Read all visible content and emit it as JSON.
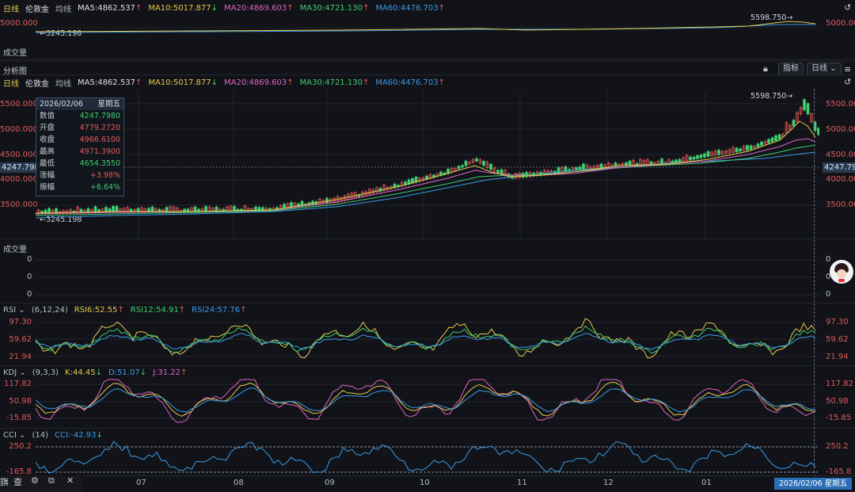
{
  "mini_bar": {
    "period": "日线",
    "name": "伦敦金",
    "avg": "均线",
    "ma5": "MA5:4862.537",
    "ma10": "MA10:5017.877",
    "ma20": "MA20:4869.603",
    "ma30": "MA30:4721.130",
    "ma60": "MA60:4476.703"
  },
  "mini_chart": {
    "y_label": "5000.000",
    "peak": "5598.750",
    "low": "3245.198"
  },
  "volume_title": "成交量",
  "analysis": {
    "title": "分析图",
    "indicator_btn": "指标",
    "period_btn": "日线"
  },
  "main_bar": {
    "period": "日线",
    "name": "伦敦金",
    "avg": "均线",
    "ma5": "MA5:4862.537",
    "ma10": "MA10:5017.877",
    "ma20": "MA20:4869.603",
    "ma30": "MA30:4721.130",
    "ma60": "MA60:4476.703"
  },
  "main_chart": {
    "y_ticks": [
      "5500.000",
      "5000.000",
      "4500.000",
      "4000.000",
      "3500.000"
    ],
    "crosshair_value": "4247.798",
    "peak": "5598.750",
    "low": "3245.198"
  },
  "tooltip": {
    "date": "2026/02/06",
    "weekday": "星期五",
    "rows": [
      {
        "label": "数值",
        "value": "4247.7980",
        "color": "#3fce6f"
      },
      {
        "label": "开盘",
        "value": "4779.2720",
        "color": "#e15a5a"
      },
      {
        "label": "收盘",
        "value": "4966.6100",
        "color": "#e15a5a"
      },
      {
        "label": "最高",
        "value": "4971.3900",
        "color": "#e15a5a"
      },
      {
        "label": "最低",
        "value": "4654.3550",
        "color": "#3fce6f"
      },
      {
        "label": "涨幅",
        "value": "+3.98%",
        "color": "#e15a5a"
      },
      {
        "label": "振幅",
        "value": "+6.64%",
        "color": "#3fce6f"
      }
    ]
  },
  "volume_panel": {
    "title": "成交量",
    "ticks": [
      "0",
      "0",
      "0"
    ]
  },
  "rsi": {
    "name": "RSI",
    "params": "(6,12,24)",
    "rsi6": "RSI6:52.55",
    "rsi12": "RSI12:54.91",
    "rsi24": "RSI24:57.76",
    "ticks": [
      "97.30",
      "59.62",
      "21.94"
    ]
  },
  "kdj": {
    "name": "KDJ",
    "params": "(9,3,3)",
    "k": "K:44.45",
    "d": "D:51.07",
    "j": "J:31.22",
    "ticks": [
      "117.82",
      "50.98",
      "-15.85"
    ]
  },
  "cci": {
    "name": "CCI",
    "params": "(14)",
    "val": "CCI:-42.93",
    "ticks": [
      "250.2",
      "-165.8"
    ]
  },
  "x_axis": {
    "labels": [
      "07",
      "08",
      "09",
      "10",
      "11",
      "12",
      "01"
    ],
    "current": "2026/02/06 星期五"
  },
  "bottom_toolbar": {
    "items": [
      "旗",
      "查",
      "⚙",
      "⧉",
      "✕"
    ]
  },
  "colors": {
    "up": "#e15a5a",
    "down": "#3fce6f",
    "ma5": "#e6c84b",
    "ma10": "#e6c84b",
    "ma20": "#e062c9",
    "ma30": "#3fce6f",
    "ma60": "#3a9be8",
    "bg": "#111318",
    "grid": "#23262e"
  }
}
